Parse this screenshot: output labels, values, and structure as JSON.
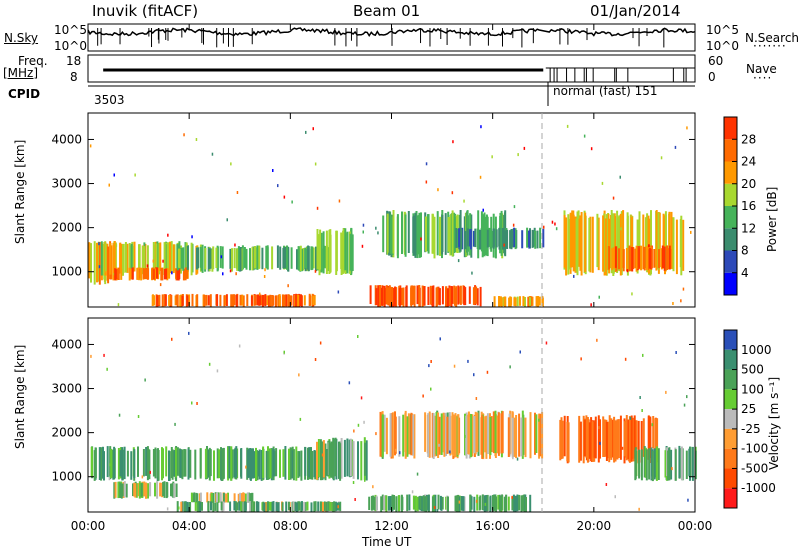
{
  "header": {
    "station": "Inuvik (fitACF)",
    "beam": "Beam 01",
    "date": "01/Jan/2014"
  },
  "summary": {
    "nsky_label": "N.Sky",
    "nsearch_label": "N.Search",
    "freq_label": "Freq.",
    "freq_unit": "[MHz]",
    "nave_label": "Nave",
    "cpid_label": "CPID",
    "nsky_ticks": [
      "10^5",
      "10^0"
    ],
    "nsearch_ticks": [
      "10^5",
      "10^0"
    ],
    "freq_ticks": [
      "18",
      "8"
    ],
    "nave_ticks": [
      "60",
      "0"
    ],
    "cpid_segments": [
      {
        "start_hour": 0,
        "end_hour": 18.05,
        "label": "3503"
      },
      {
        "start_hour": 18.05,
        "end_hour": 24,
        "label": "normal (fast) 151"
      }
    ]
  },
  "colors": {
    "power_scale": [
      "#0000ff",
      "#2d49b8",
      "#3b8c6e",
      "#46b35a",
      "#a8d830",
      "#ff9900",
      "#ff6a00",
      "#ff3300",
      "#ff0000"
    ],
    "velocity_scale": [
      "#2a4fb8",
      "#3a8f70",
      "#4aa257",
      "#66cc33",
      "#bbbbbb",
      "#ff9d33",
      "#ff7a1a",
      "#ff4a00",
      "#ff1a1a"
    ]
  },
  "chart_data": [
    {
      "type": "heatmap",
      "name": "power",
      "ylabel": "Slant Range [km]",
      "yticks": [
        1000,
        2000,
        3000,
        4000
      ],
      "ylim": [
        200,
        4600
      ],
      "xlim": [
        0,
        24
      ],
      "colorbar_label": "Power [dB]",
      "colorbar_ticks": [
        "4",
        "8",
        "12",
        "16",
        "20",
        "24",
        "28"
      ],
      "bands": [
        {
          "start": 0.0,
          "end": 1.0,
          "r_lo": 700,
          "r_hi": 1700,
          "value": 22
        },
        {
          "start": 0.5,
          "end": 4.5,
          "r_lo": 900,
          "r_hi": 1700,
          "value": 18
        },
        {
          "start": 1.0,
          "end": 4.0,
          "r_lo": 800,
          "r_hi": 1100,
          "value": 26
        },
        {
          "start": 3.5,
          "end": 9.5,
          "r_lo": 1000,
          "r_hi": 1600,
          "value": 14
        },
        {
          "start": 2.5,
          "end": 9.0,
          "r_lo": 200,
          "r_hi": 500,
          "value": 26
        },
        {
          "start": 9.0,
          "end": 10.5,
          "r_lo": 900,
          "r_hi": 2000,
          "value": 16
        },
        {
          "start": 11.0,
          "end": 15.5,
          "r_lo": 200,
          "r_hi": 700,
          "value": 28
        },
        {
          "start": 11.5,
          "end": 16.5,
          "r_lo": 1300,
          "r_hi": 2400,
          "value": 14
        },
        {
          "start": 14.5,
          "end": 18.0,
          "r_lo": 1500,
          "r_hi": 2000,
          "value": 10
        },
        {
          "start": 16.0,
          "end": 18.0,
          "r_lo": 200,
          "r_hi": 450,
          "value": 22
        },
        {
          "start": 18.8,
          "end": 23.5,
          "r_lo": 900,
          "r_hi": 2400,
          "value": 20
        },
        {
          "start": 20.5,
          "end": 23.0,
          "r_lo": 1000,
          "r_hi": 1600,
          "value": 26
        }
      ]
    },
    {
      "type": "heatmap",
      "name": "velocity",
      "ylabel": "Slant Range [km]",
      "yticks": [
        1000,
        2000,
        3000,
        4000
      ],
      "ylim": [
        200,
        4600
      ],
      "xlim": [
        0,
        24
      ],
      "xticks": [
        "00:00",
        "04:00",
        "08:00",
        "12:00",
        "16:00",
        "20:00",
        "00:00"
      ],
      "xlabel": "Time UT",
      "colorbar_label": "Velocity [m s⁻¹]",
      "colorbar_ticks": [
        "1000",
        "500",
        "100",
        "25",
        "-25",
        "-100",
        "-500",
        "-1000"
      ],
      "bands": [
        {
          "start": 0.0,
          "end": 9.5,
          "r_lo": 900,
          "r_hi": 1700,
          "value": 250
        },
        {
          "start": 1.0,
          "end": 3.5,
          "r_lo": 500,
          "r_hi": 900,
          "value": 50
        },
        {
          "start": 4.0,
          "end": 6.5,
          "r_lo": 400,
          "r_hi": 650,
          "value": 0
        },
        {
          "start": 3.5,
          "end": 10.0,
          "r_lo": 200,
          "r_hi": 450,
          "value": 150
        },
        {
          "start": 9.0,
          "end": 11.0,
          "r_lo": 900,
          "r_hi": 1900,
          "value": 150
        },
        {
          "start": 11.0,
          "end": 17.5,
          "r_lo": 200,
          "r_hi": 600,
          "value": 200
        },
        {
          "start": 11.5,
          "end": 18.0,
          "r_lo": 1400,
          "r_hi": 2500,
          "value": -150
        },
        {
          "start": 18.5,
          "end": 22.5,
          "r_lo": 1300,
          "r_hi": 2400,
          "value": -700
        },
        {
          "start": 21.5,
          "end": 24.0,
          "r_lo": 900,
          "r_hi": 1700,
          "value": 200
        }
      ]
    }
  ]
}
